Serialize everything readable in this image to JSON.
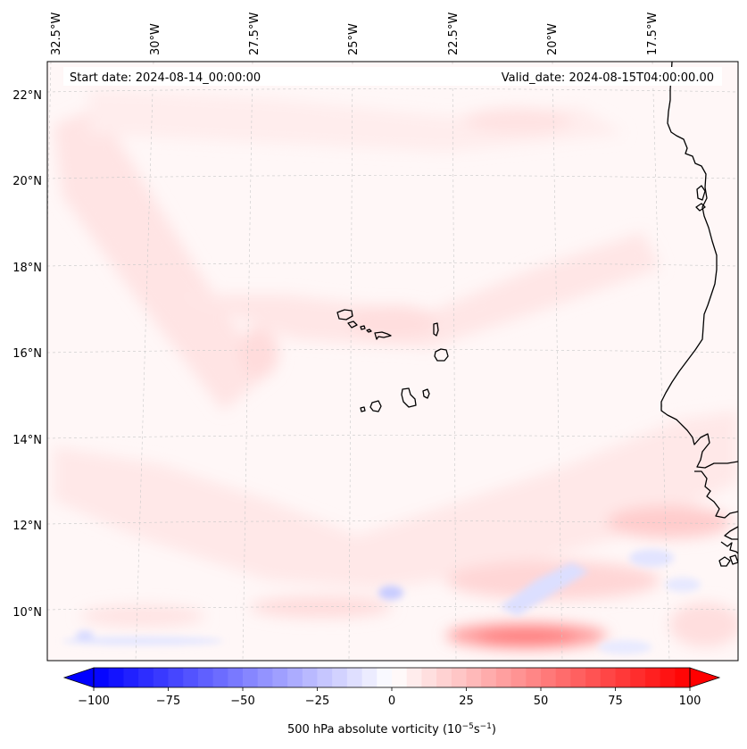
{
  "header": {
    "start_date": "Start date: 2024-08-14_00:00:00",
    "valid_date": "Valid_date: 2024-08-15T04:00:00.00"
  },
  "lon_labels": [
    "32.5°W",
    "30°W",
    "27.5°W",
    "25°W",
    "22.5°W",
    "20°W",
    "17.5°W"
  ],
  "lat_labels": [
    "22°N",
    "20°N",
    "18°N",
    "16°N",
    "14°N",
    "12°N",
    "10°N"
  ],
  "colorbar": {
    "ticks": [
      "−100",
      "−75",
      "−50",
      "−25",
      "0",
      "25",
      "50",
      "75",
      "100"
    ],
    "label_prefix": "500 hPa absolute vorticity (10",
    "label_exp1": "−5",
    "label_mid": "s",
    "label_exp2": "−1",
    "label_suffix": ")",
    "min": -100,
    "max": 100,
    "levels": 40,
    "color_low": "#0000ff",
    "color_mid": "#ffffff",
    "color_high": "#ff0000"
  },
  "colors": {
    "background_field": "#fff6f6",
    "coastline": "#000000",
    "gridline": "#c8c8c8"
  }
}
